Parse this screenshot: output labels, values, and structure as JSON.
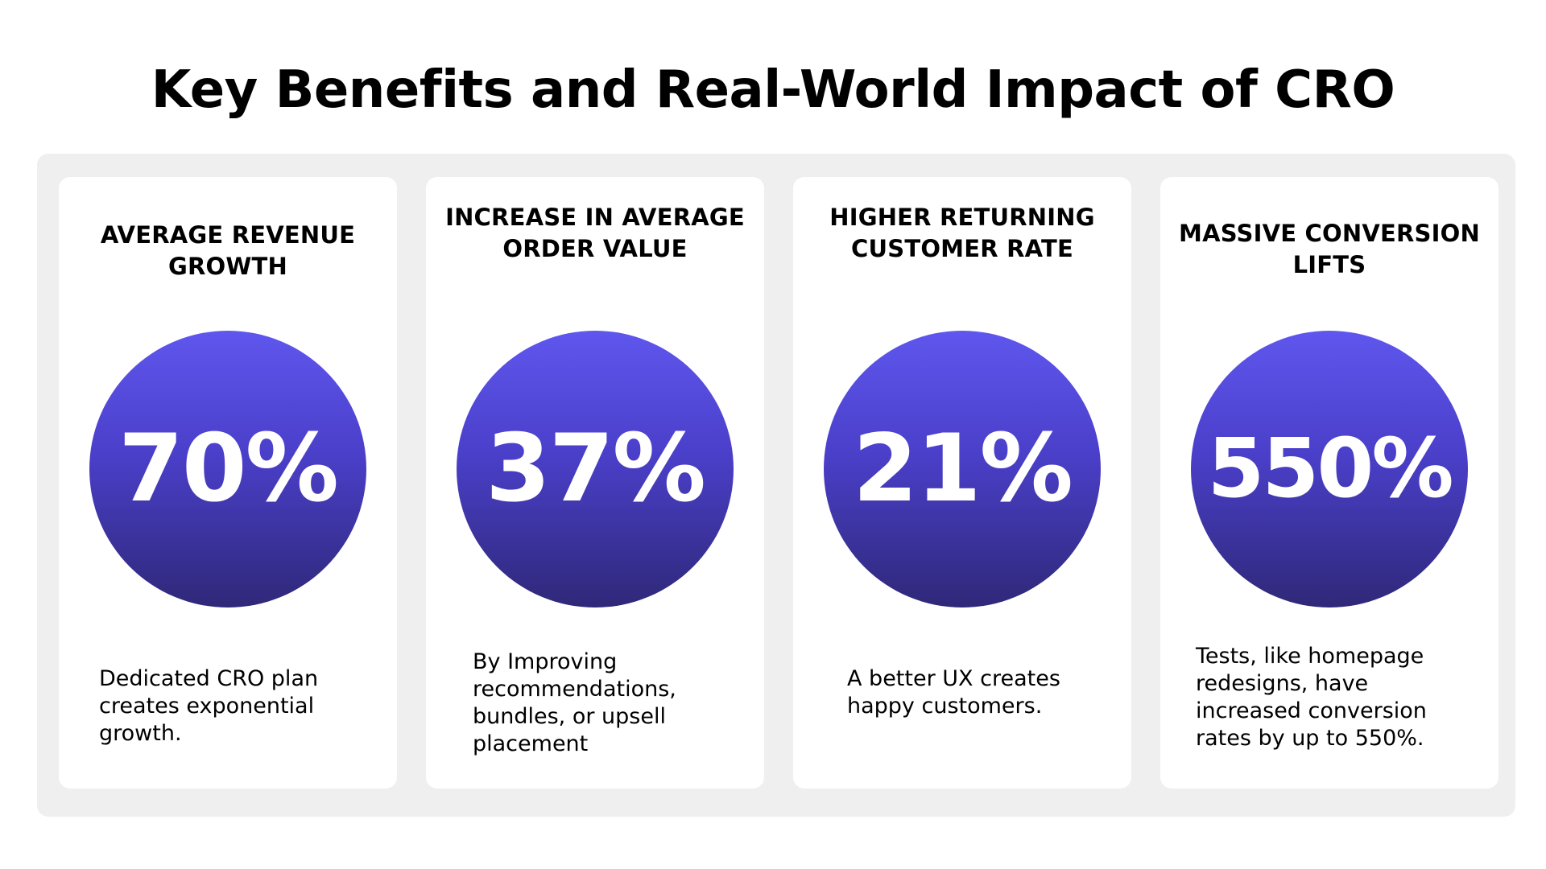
{
  "page": {
    "title": "Key Benefits and Real-World Impact of CRO"
  },
  "colors": {
    "panel_background": "#efefef",
    "card_background": "#ffffff",
    "circle_top": "#5f56ee",
    "circle_bottom": "#2f2878",
    "value_text": "#ffffff"
  },
  "cards": [
    {
      "title": "AVERAGE REVENUE GROWTH",
      "value": "70%",
      "description": "Dedicated CRO plan creates exponential growth."
    },
    {
      "title": "INCREASE IN AVERAGE ORDER VALUE",
      "value": "37%",
      "description": "By Improving recommendations, bundles, or upsell placement"
    },
    {
      "title": "HIGHER RETURNING CUSTOMER RATE",
      "value": "21%",
      "description": "A better UX creates happy customers."
    },
    {
      "title": "MASSIVE CONVERSION LIFTS",
      "value": "550%",
      "description": "Tests, like homepage redesigns, have increased conversion rates by up to 550%."
    }
  ]
}
